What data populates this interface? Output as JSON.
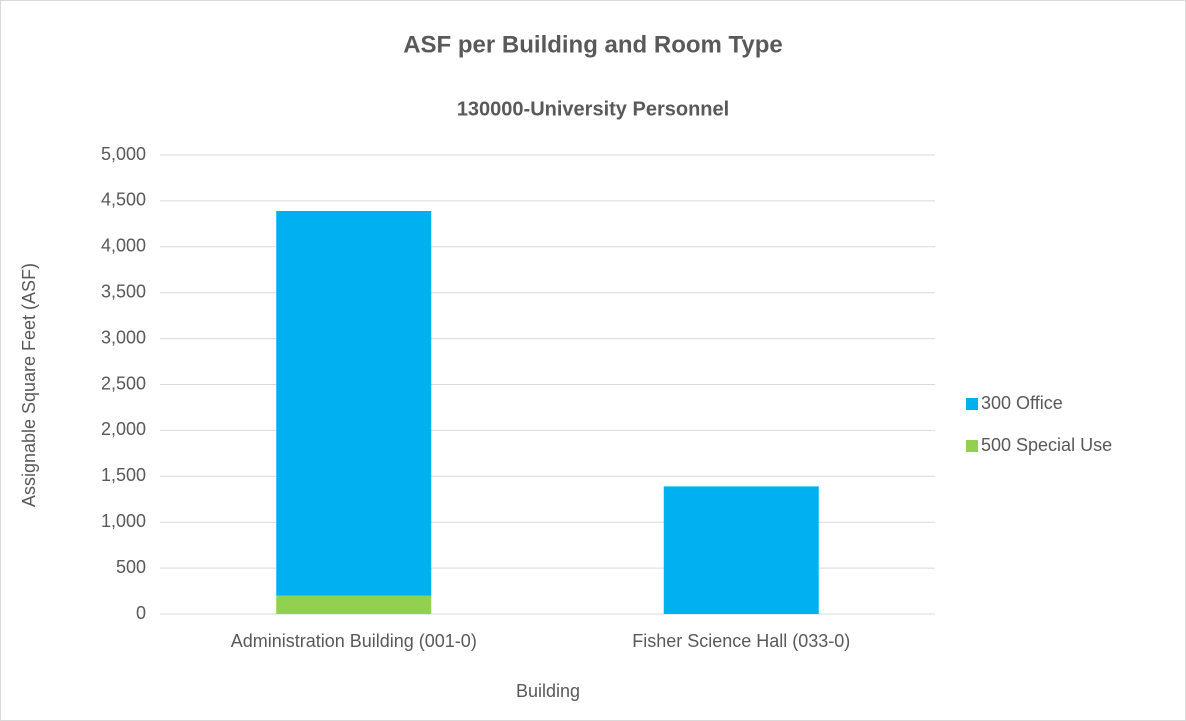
{
  "chart_data": {
    "type": "stacked_bar",
    "title": "ASF per Building and Room Type",
    "subtitle": "130000-University Personnel",
    "x_label": "Building",
    "y_label": "Assignable Square Feet (ASF)",
    "categories": [
      "Administration Building (001-0)",
      "Fisher Science Hall (033-0)"
    ],
    "series": [
      {
        "name": "500 Special Use",
        "color": "#92d050",
        "values": [
          200,
          null
        ]
      },
      {
        "name": "300 Office",
        "color": "#00b0f0",
        "values": [
          4190,
          1390
        ]
      }
    ],
    "ylim": [
      0,
      5000
    ],
    "yticks": [
      {
        "value": 0,
        "label": "0"
      },
      {
        "value": 500,
        "label": "500"
      },
      {
        "value": 1000,
        "label": "1,000"
      },
      {
        "value": 1500,
        "label": "1,500"
      },
      {
        "value": 2000,
        "label": "2,000"
      },
      {
        "value": 2500,
        "label": "2,500"
      },
      {
        "value": 3000,
        "label": "3,000"
      },
      {
        "value": 3500,
        "label": "3,500"
      },
      {
        "value": 4000,
        "label": "4,000"
      },
      {
        "value": 4500,
        "label": "4,500"
      },
      {
        "value": 5000,
        "label": "5,000"
      }
    ],
    "grid": true,
    "legend": "right"
  }
}
